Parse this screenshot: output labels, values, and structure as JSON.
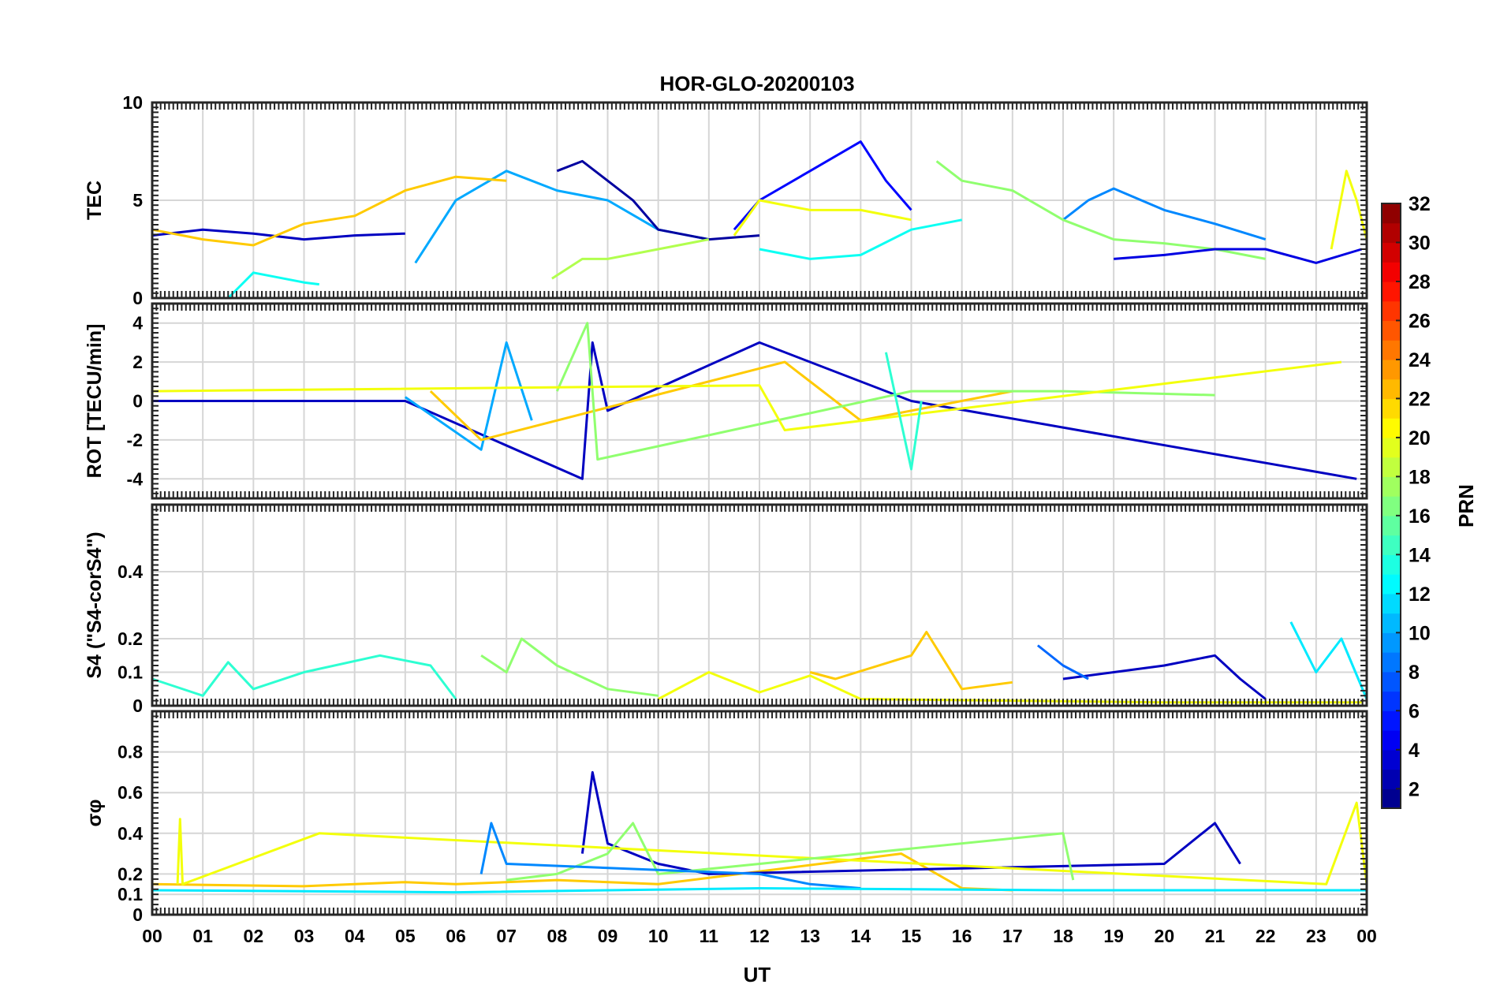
{
  "chart_data": {
    "type": "line",
    "title": "HOR-GLO-20200103",
    "xlabel": "UT",
    "xlim": [
      0,
      24
    ],
    "x_tick_labels": [
      "00",
      "01",
      "02",
      "03",
      "04",
      "05",
      "06",
      "07",
      "08",
      "09",
      "10",
      "11",
      "12",
      "13",
      "14",
      "15",
      "16",
      "17",
      "18",
      "19",
      "20",
      "21",
      "22",
      "23",
      "00"
    ],
    "grid": true,
    "colormap": "jet",
    "colorbar": {
      "label": "PRN",
      "range": [
        1,
        32
      ],
      "tick_labels": [
        "2",
        "4",
        "6",
        "8",
        "10",
        "12",
        "14",
        "16",
        "18",
        "20",
        "22",
        "24",
        "26",
        "28",
        "30",
        "32"
      ],
      "placement": "right"
    },
    "panels": [
      {
        "ylabel": "TEC",
        "ylim": [
          0,
          10
        ],
        "y_tick_labels": [
          "0",
          "5",
          "10"
        ],
        "series": [
          {
            "prn": 3,
            "x": [
              0,
              1,
              2,
              3,
              4,
              5
            ],
            "y": [
              3.2,
              3.5,
              3.3,
              3.0,
              3.2,
              3.3
            ]
          },
          {
            "prn": 10,
            "x": [
              5.2,
              6,
              7,
              8,
              9,
              10,
              11
            ],
            "y": [
              1.8,
              5,
              6.5,
              5.5,
              5,
              3.5,
              3
            ]
          },
          {
            "prn": 2,
            "x": [
              8,
              8.5,
              9,
              9.5,
              10,
              11,
              12
            ],
            "y": [
              6.5,
              7,
              6,
              5,
              3.5,
              3,
              3.2
            ]
          },
          {
            "prn": 5,
            "x": [
              11.5,
              12,
              13,
              14,
              14.5,
              15
            ],
            "y": [
              3.5,
              5,
              6.5,
              8,
              6,
              4.5
            ]
          },
          {
            "prn": 9,
            "x": [
              18,
              18.5,
              19,
              20,
              21,
              22
            ],
            "y": [
              4,
              5,
              5.6,
              4.5,
              3.8,
              3
            ]
          },
          {
            "prn": 22,
            "x": [
              0,
              1,
              2,
              3,
              4,
              5,
              6,
              7
            ],
            "y": [
              3.5,
              3,
              2.7,
              3.8,
              4.2,
              5.5,
              6.2,
              6
            ]
          },
          {
            "prn": 17,
            "x": [
              15.5,
              16,
              17,
              18,
              19,
              20,
              21,
              22
            ],
            "y": [
              7,
              6,
              5.5,
              4,
              3,
              2.8,
              2.5,
              2
            ]
          },
          {
            "prn": 13,
            "x": [
              12,
              13,
              14,
              15,
              16
            ],
            "y": [
              2.5,
              2,
              2.2,
              3.5,
              4
            ]
          },
          {
            "prn": 20,
            "x": [
              11.5,
              12,
              13,
              14,
              15
            ],
            "y": [
              3.2,
              5,
              4.5,
              4.5,
              4
            ]
          },
          {
            "prn": 4,
            "x": [
              19,
              20,
              21,
              22,
              23,
              23.9
            ],
            "y": [
              2,
              2.2,
              2.5,
              2.5,
              1.8,
              2.5
            ]
          },
          {
            "prn": 13,
            "x": [
              1.5,
              2,
              3,
              3.3
            ],
            "y": [
              0,
              1.3,
              0.8,
              0.7
            ]
          },
          {
            "prn": 18,
            "x": [
              7.9,
              8.5,
              9,
              10,
              11
            ],
            "y": [
              1,
              2,
              2,
              2.5,
              3
            ]
          },
          {
            "prn": 20,
            "x": [
              23.3,
              23.6,
              23.8,
              24
            ],
            "y": [
              2.5,
              6.5,
              5,
              3
            ]
          }
        ]
      },
      {
        "ylabel": "ROT [TECU/min]",
        "ylim": [
          -5,
          5
        ],
        "y_tick_labels": [
          "-4",
          "-2",
          "0",
          "2",
          "4"
        ],
        "series": [
          {
            "prn": 3,
            "x": [
              0,
              5,
              8.5,
              8.7,
              9,
              12,
              15,
              23.8
            ],
            "y": [
              0,
              0,
              -4,
              3,
              -0.5,
              3,
              0,
              -4
            ]
          },
          {
            "prn": 10,
            "x": [
              5,
              6.5,
              7,
              7.5
            ],
            "y": [
              0.2,
              -2.5,
              3,
              -1
            ]
          },
          {
            "prn": 22,
            "x": [
              5.5,
              6.5,
              12.5,
              14,
              17
            ],
            "y": [
              0.5,
              -2,
              2,
              -1,
              0.5
            ]
          },
          {
            "prn": 17,
            "x": [
              8,
              8.6,
              8.8,
              15,
              18,
              21
            ],
            "y": [
              0.5,
              4,
              -3,
              0.5,
              0.5,
              0.3
            ]
          },
          {
            "prn": 20,
            "x": [
              0,
              12,
              12.5,
              23.5
            ],
            "y": [
              0.5,
              0.8,
              -1.5,
              2
            ]
          },
          {
            "prn": 14,
            "x": [
              14.5,
              15,
              15.2
            ],
            "y": [
              2.5,
              -3.5,
              0
            ]
          }
        ]
      },
      {
        "ylabel": "S4 (\"S4-corS4\")",
        "ylim": [
          0,
          0.6
        ],
        "y_tick_labels": [
          "0",
          "0.1",
          "0.2",
          "0.4"
        ],
        "series": [
          {
            "prn": 14,
            "x": [
              0,
              1,
              1.5,
              2,
              3,
              4.5,
              5.5,
              6
            ],
            "y": [
              0.08,
              0.03,
              0.13,
              0.05,
              0.1,
              0.15,
              0.12,
              0.02
            ]
          },
          {
            "prn": 17,
            "x": [
              6.5,
              7,
              7.3,
              8,
              9,
              10
            ],
            "y": [
              0.15,
              0.1,
              0.2,
              0.12,
              0.05,
              0.03
            ]
          },
          {
            "prn": 22,
            "x": [
              13,
              13.5,
              15,
              15.3,
              16,
              17
            ],
            "y": [
              0.1,
              0.08,
              0.15,
              0.22,
              0.05,
              0.07
            ]
          },
          {
            "prn": 3,
            "x": [
              18,
              19,
              20,
              21,
              21.5,
              22
            ],
            "y": [
              0.08,
              0.1,
              0.12,
              0.15,
              0.08,
              0.02
            ]
          },
          {
            "prn": 12,
            "x": [
              22.5,
              23,
              23.5,
              24
            ],
            "y": [
              0.25,
              0.1,
              0.2,
              0.02
            ]
          },
          {
            "prn": 8,
            "x": [
              17.5,
              18,
              18.5
            ],
            "y": [
              0.18,
              0.12,
              0.08
            ]
          },
          {
            "prn": 20,
            "x": [
              10,
              11,
              12,
              13,
              14,
              20,
              23.9
            ],
            "y": [
              0.02,
              0.1,
              0.04,
              0.09,
              0.02,
              0.01,
              0.01
            ]
          }
        ]
      },
      {
        "ylabel": "σφ",
        "ylim": [
          0,
          1
        ],
        "y_tick_labels": [
          "0",
          "0.1",
          "0.2",
          "0.4",
          "0.6",
          "0.8"
        ],
        "series": [
          {
            "prn": 22,
            "x": [
              0,
              3,
              4,
              5,
              6,
              8,
              10,
              14.8,
              16,
              17
            ],
            "y": [
              0.15,
              0.14,
              0.15,
              0.16,
              0.15,
              0.17,
              0.15,
              0.3,
              0.13,
              0.12
            ]
          },
          {
            "prn": 3,
            "x": [
              8.5,
              8.7,
              9,
              10,
              11,
              20,
              21,
              21.5
            ],
            "y": [
              0.3,
              0.7,
              0.35,
              0.25,
              0.2,
              0.25,
              0.45,
              0.25
            ]
          },
          {
            "prn": 20,
            "x": [
              0.5,
              0.55,
              0.6,
              3.3,
              23.2,
              23.8,
              24
            ],
            "y": [
              0.15,
              0.47,
              0.15,
              0.4,
              0.15,
              0.55,
              0.15
            ]
          },
          {
            "prn": 17,
            "x": [
              7,
              8,
              9,
              9.5,
              10,
              18,
              18.2
            ],
            "y": [
              0.17,
              0.2,
              0.3,
              0.45,
              0.2,
              0.4,
              0.17
            ]
          },
          {
            "prn": 9,
            "x": [
              6.5,
              6.7,
              7,
              12,
              13,
              14
            ],
            "y": [
              0.2,
              0.45,
              0.25,
              0.2,
              0.15,
              0.13
            ]
          },
          {
            "prn": 12,
            "x": [
              0,
              6,
              12,
              18,
              24
            ],
            "y": [
              0.12,
              0.11,
              0.13,
              0.12,
              0.12
            ]
          }
        ]
      }
    ]
  }
}
